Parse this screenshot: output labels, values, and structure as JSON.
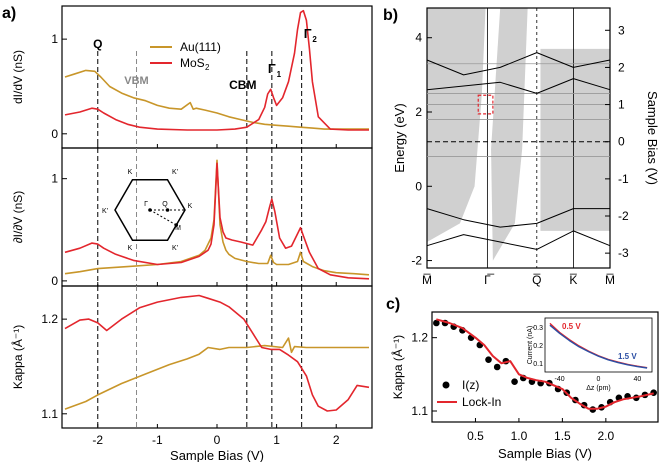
{
  "panel_labels": {
    "a": "a)",
    "b": "b)",
    "c": "c)"
  },
  "chart_data": [
    {
      "panel": "a",
      "type": "line",
      "ylabel": "dI/dV (nS)",
      "yticks": [
        "0",
        "1"
      ],
      "ylim": [
        -0.15,
        1.35
      ],
      "xlim": [
        -2.6,
        2.6
      ],
      "legend": {
        "placement": "top-center",
        "items": [
          "Au(111)",
          "MoS",
          "2"
        ]
      },
      "markers": [
        {
          "label": "Q",
          "x": -2.0,
          "style": "black-dashed"
        },
        {
          "label": "VBM",
          "x": -1.35,
          "style": "gray-dashed"
        },
        {
          "label": "CBM",
          "x": 0.5,
          "style": "black-dashed"
        },
        {
          "label": "Γ",
          "sub": "1",
          "x": 0.92,
          "style": "black-dashed"
        },
        {
          "label": "Γ",
          "sub": "2",
          "x": 1.42,
          "style": "black-dashed"
        }
      ],
      "series": [
        {
          "name": "Au(111)",
          "color": "#c8962a",
          "x": [
            -2.55,
            -2.4,
            -2.2,
            -2.05,
            -1.95,
            -1.8,
            -1.6,
            -1.4,
            -1.2,
            -1.0,
            -0.8,
            -0.6,
            -0.45,
            -0.4,
            -0.35,
            -0.2,
            0.0,
            0.2,
            0.4,
            0.6,
            0.8,
            1.0,
            1.2,
            1.4,
            1.6,
            1.8,
            2.0,
            2.2,
            2.4,
            2.55
          ],
          "y": [
            0.6,
            0.63,
            0.67,
            0.66,
            0.6,
            0.5,
            0.43,
            0.38,
            0.35,
            0.3,
            0.27,
            0.26,
            0.33,
            0.26,
            0.27,
            0.25,
            0.22,
            0.18,
            0.15,
            0.12,
            0.1,
            0.09,
            0.08,
            0.07,
            0.06,
            0.05,
            0.05,
            0.05,
            0.05,
            0.05
          ]
        },
        {
          "name": "MoS2",
          "color": "#e3262d",
          "x": [
            -2.55,
            -2.3,
            -2.1,
            -2.0,
            -1.9,
            -1.7,
            -1.5,
            -1.3,
            -1.0,
            -0.5,
            0.0,
            0.3,
            0.5,
            0.7,
            0.8,
            0.85,
            0.9,
            0.95,
            1.0,
            1.1,
            1.2,
            1.3,
            1.35,
            1.4,
            1.45,
            1.5,
            1.55,
            1.6,
            1.7,
            1.9,
            2.2,
            2.55
          ],
          "y": [
            0.2,
            0.23,
            0.27,
            0.26,
            0.22,
            0.15,
            0.1,
            0.07,
            0.05,
            0.04,
            0.04,
            0.05,
            0.07,
            0.15,
            0.28,
            0.42,
            0.47,
            0.38,
            0.3,
            0.38,
            0.55,
            0.85,
            1.1,
            1.28,
            1.3,
            1.2,
            0.9,
            0.55,
            0.18,
            0.05,
            0.04,
            0.04
          ]
        }
      ]
    },
    {
      "panel": "a",
      "type": "line",
      "ylabel": "∂I/∂V (nS)",
      "yticks": [
        "0",
        "1"
      ],
      "ylim": [
        -0.05,
        1.3
      ],
      "xlim": [
        -2.6,
        2.6
      ],
      "markers_x": [
        -2.0,
        -1.35,
        0.5,
        0.92,
        1.42
      ],
      "inset": {
        "type": "hexagon-brillouin-zone",
        "labels": [
          "K",
          "K'",
          "K'",
          "K",
          "K",
          "K'",
          "Γ",
          "Q",
          "M"
        ]
      },
      "series": [
        {
          "name": "Au(111)",
          "color": "#c8962a",
          "x": [
            -2.55,
            -2.3,
            -2.0,
            -1.5,
            -1.0,
            -0.6,
            -0.3,
            -0.2,
            -0.1,
            -0.05,
            0.0,
            0.05,
            0.1,
            0.15,
            0.2,
            0.3,
            0.5,
            0.7,
            0.85,
            0.9,
            0.95,
            1.0,
            1.2,
            1.35,
            1.4,
            1.45,
            1.6,
            1.8,
            2.0,
            2.3,
            2.55
          ],
          "y": [
            0.07,
            0.09,
            0.12,
            0.14,
            0.16,
            0.19,
            0.25,
            0.3,
            0.42,
            0.6,
            1.18,
            0.55,
            0.38,
            0.3,
            0.26,
            0.22,
            0.19,
            0.17,
            0.17,
            0.25,
            0.18,
            0.16,
            0.16,
            0.19,
            0.28,
            0.19,
            0.14,
            0.1,
            0.08,
            0.07,
            0.06
          ]
        },
        {
          "name": "MoS2",
          "color": "#e3262d",
          "x": [
            -2.55,
            -2.3,
            -2.1,
            -2.0,
            -1.9,
            -1.7,
            -1.4,
            -1.0,
            -0.6,
            -0.3,
            -0.15,
            -0.1,
            -0.05,
            0.0,
            0.05,
            0.1,
            0.15,
            0.25,
            0.4,
            0.6,
            0.75,
            0.82,
            0.88,
            0.92,
            0.97,
            1.05,
            1.15,
            1.25,
            1.35,
            1.4,
            1.45,
            1.55,
            1.7,
            1.9,
            2.2,
            2.55
          ],
          "y": [
            0.28,
            0.32,
            0.37,
            0.36,
            0.32,
            0.26,
            0.2,
            0.16,
            0.18,
            0.24,
            0.3,
            0.36,
            0.55,
            1.15,
            0.62,
            0.48,
            0.42,
            0.4,
            0.38,
            0.35,
            0.5,
            0.58,
            0.72,
            0.8,
            0.68,
            0.42,
            0.32,
            0.34,
            0.46,
            0.52,
            0.44,
            0.28,
            0.12,
            0.06,
            0.03,
            0.02
          ]
        }
      ]
    },
    {
      "panel": "a",
      "type": "line",
      "ylabel": "Kappa (Å⁻¹)",
      "yticks": [
        "1.1",
        "1.2"
      ],
      "ylim": [
        1.085,
        1.235
      ],
      "xlim": [
        -2.6,
        2.6
      ],
      "xlabel": "Sample Bias (V)",
      "xticks": [
        "-2",
        "-1",
        "0",
        "1",
        "2"
      ],
      "markers_x": [
        -2.0,
        -1.35,
        0.5,
        0.92,
        1.42
      ],
      "series": [
        {
          "name": "Au(111)",
          "color": "#c8962a",
          "x": [
            -2.55,
            -2.2,
            -2.0,
            -1.6,
            -1.2,
            -0.8,
            -0.5,
            -0.3,
            -0.15,
            0.05,
            0.2,
            0.5,
            0.8,
            1.1,
            1.2,
            1.25,
            1.3,
            1.5,
            1.8,
            2.1,
            2.55
          ],
          "y": [
            1.105,
            1.113,
            1.12,
            1.132,
            1.142,
            1.152,
            1.158,
            1.163,
            1.17,
            1.168,
            1.17,
            1.17,
            1.172,
            1.17,
            1.18,
            1.165,
            1.171,
            1.17,
            1.17,
            1.17,
            1.17
          ]
        },
        {
          "name": "MoS2",
          "color": "#e3262d",
          "x": [
            -2.55,
            -2.3,
            -2.15,
            -2.0,
            -1.85,
            -1.6,
            -1.3,
            -1.0,
            -0.6,
            -0.3,
            -0.15,
            0.05,
            0.2,
            0.45,
            0.6,
            0.75,
            0.9,
            1.05,
            1.2,
            1.35,
            1.5,
            1.6,
            1.7,
            1.85,
            2.0,
            2.2,
            2.35,
            2.55
          ],
          "y": [
            1.19,
            1.199,
            1.2,
            1.196,
            1.188,
            1.2,
            1.212,
            1.218,
            1.223,
            1.225,
            1.222,
            1.218,
            1.213,
            1.2,
            1.185,
            1.17,
            1.168,
            1.168,
            1.162,
            1.155,
            1.14,
            1.12,
            1.108,
            1.103,
            1.104,
            1.115,
            1.13,
            1.128
          ]
        }
      ]
    },
    {
      "panel": "b",
      "type": "line",
      "ylabel": "Energy (eV)",
      "ylabel_right": "Sample Bias (V)",
      "yticks_left": [
        "-2",
        "0",
        "2",
        "4"
      ],
      "yticks_right": [
        "-3",
        "-2",
        "-1",
        "0",
        "1",
        "2",
        "3"
      ],
      "ylim": [
        -2.2,
        4.8
      ],
      "right_axis_offset_eV": 1.2,
      "xticks": [
        "M̅",
        "Γ̅",
        "Q̅",
        "K̅",
        "M̅"
      ],
      "dashed_level_eV": 1.2,
      "highlight_box": {
        "x": [
          0.28,
          0.36
        ],
        "y": [
          1.95,
          2.45
        ]
      },
      "series": [
        {
          "name": "band",
          "color": "#000000",
          "x": [
            0,
            0.2,
            0.4,
            0.6,
            0.8,
            1.0
          ],
          "y": [
            -0.6,
            -0.9,
            -1.1,
            -1.0,
            -0.6,
            -0.6
          ]
        },
        {
          "name": "band",
          "color": "#000000",
          "x": [
            0,
            0.2,
            0.4,
            0.6,
            0.8,
            1.0
          ],
          "y": [
            -1.6,
            -1.3,
            -1.5,
            -1.7,
            -1.2,
            -1.6
          ]
        },
        {
          "name": "band",
          "color": "#000000",
          "x": [
            0,
            0.2,
            0.4,
            0.6,
            0.8,
            1.0
          ],
          "y": [
            3.4,
            3.0,
            3.2,
            3.6,
            3.2,
            3.4
          ]
        },
        {
          "name": "band",
          "color": "#000000",
          "x": [
            0,
            0.2,
            0.4,
            0.6,
            0.8,
            1.0
          ],
          "y": [
            2.6,
            2.7,
            2.8,
            2.5,
            2.9,
            2.6
          ]
        }
      ]
    },
    {
      "panel": "c",
      "type": "line",
      "ylabel": "Kappa (Å⁻¹)",
      "yticks": [
        "1.1",
        "1.2"
      ],
      "ylim": [
        1.085,
        1.235
      ],
      "xlabel": "Sample Bias (V)",
      "xticks": [
        "0.5",
        "1.0",
        "1.5",
        "2.0"
      ],
      "xlim": [
        0.0,
        2.6
      ],
      "legend": {
        "placement": "bottom-left",
        "items": [
          "I(z)",
          "Lock-In"
        ]
      },
      "series": [
        {
          "name": "I(z)",
          "type": "scatter",
          "color": "#000000",
          "x": [
            0.05,
            0.15,
            0.25,
            0.35,
            0.45,
            0.55,
            0.65,
            0.75,
            0.85,
            0.95,
            1.05,
            1.15,
            1.25,
            1.35,
            1.45,
            1.55,
            1.65,
            1.75,
            1.85,
            1.95,
            2.05,
            2.15,
            2.25,
            2.35,
            2.45,
            2.55
          ],
          "y": [
            1.22,
            1.22,
            1.215,
            1.21,
            1.2,
            1.19,
            1.17,
            1.16,
            1.168,
            1.14,
            1.145,
            1.14,
            1.138,
            1.138,
            1.13,
            1.125,
            1.115,
            1.108,
            1.102,
            1.105,
            1.112,
            1.118,
            1.12,
            1.118,
            1.122,
            1.125
          ]
        },
        {
          "name": "Lock-In",
          "color": "#e3262d",
          "x": [
            0.05,
            0.2,
            0.35,
            0.5,
            0.6,
            0.7,
            0.8,
            0.9,
            1.0,
            1.1,
            1.2,
            1.3,
            1.4,
            1.5,
            1.6,
            1.7,
            1.8,
            1.9,
            2.0,
            2.1,
            2.2,
            2.3,
            2.4,
            2.55
          ],
          "y": [
            1.225,
            1.22,
            1.213,
            1.2,
            1.19,
            1.175,
            1.165,
            1.168,
            1.15,
            1.145,
            1.142,
            1.14,
            1.135,
            1.13,
            1.118,
            1.11,
            1.103,
            1.103,
            1.106,
            1.112,
            1.116,
            1.118,
            1.12,
            1.124
          ]
        }
      ],
      "inset": {
        "ylabel": "Current (nA)",
        "xlabel": "Δz (pm)",
        "yticks": [
          "0.1",
          "0.2",
          "0.3"
        ],
        "xticks": [
          "-40",
          "0",
          "40"
        ],
        "ylim": [
          0.05,
          0.35
        ],
        "xlim": [
          -55,
          55
        ],
        "series": [
          {
            "name": "0.5 V",
            "color": "#e3262d",
            "x": [
              -50,
              -40,
              -30,
              -20,
              -10,
              0,
              10,
              20,
              30,
              40,
              50
            ],
            "y": [
              0.32,
              0.27,
              0.23,
              0.195,
              0.165,
              0.14,
              0.12,
              0.105,
              0.092,
              0.082,
              0.074
            ]
          },
          {
            "name": "1.5 V",
            "color": "#2b4ea3",
            "x": [
              -50,
              -40,
              -30,
              -20,
              -10,
              0,
              10,
              20,
              30,
              40,
              50
            ],
            "y": [
              0.31,
              0.265,
              0.225,
              0.19,
              0.162,
              0.138,
              0.118,
              0.102,
              0.09,
              0.08,
              0.072
            ]
          }
        ]
      }
    }
  ]
}
